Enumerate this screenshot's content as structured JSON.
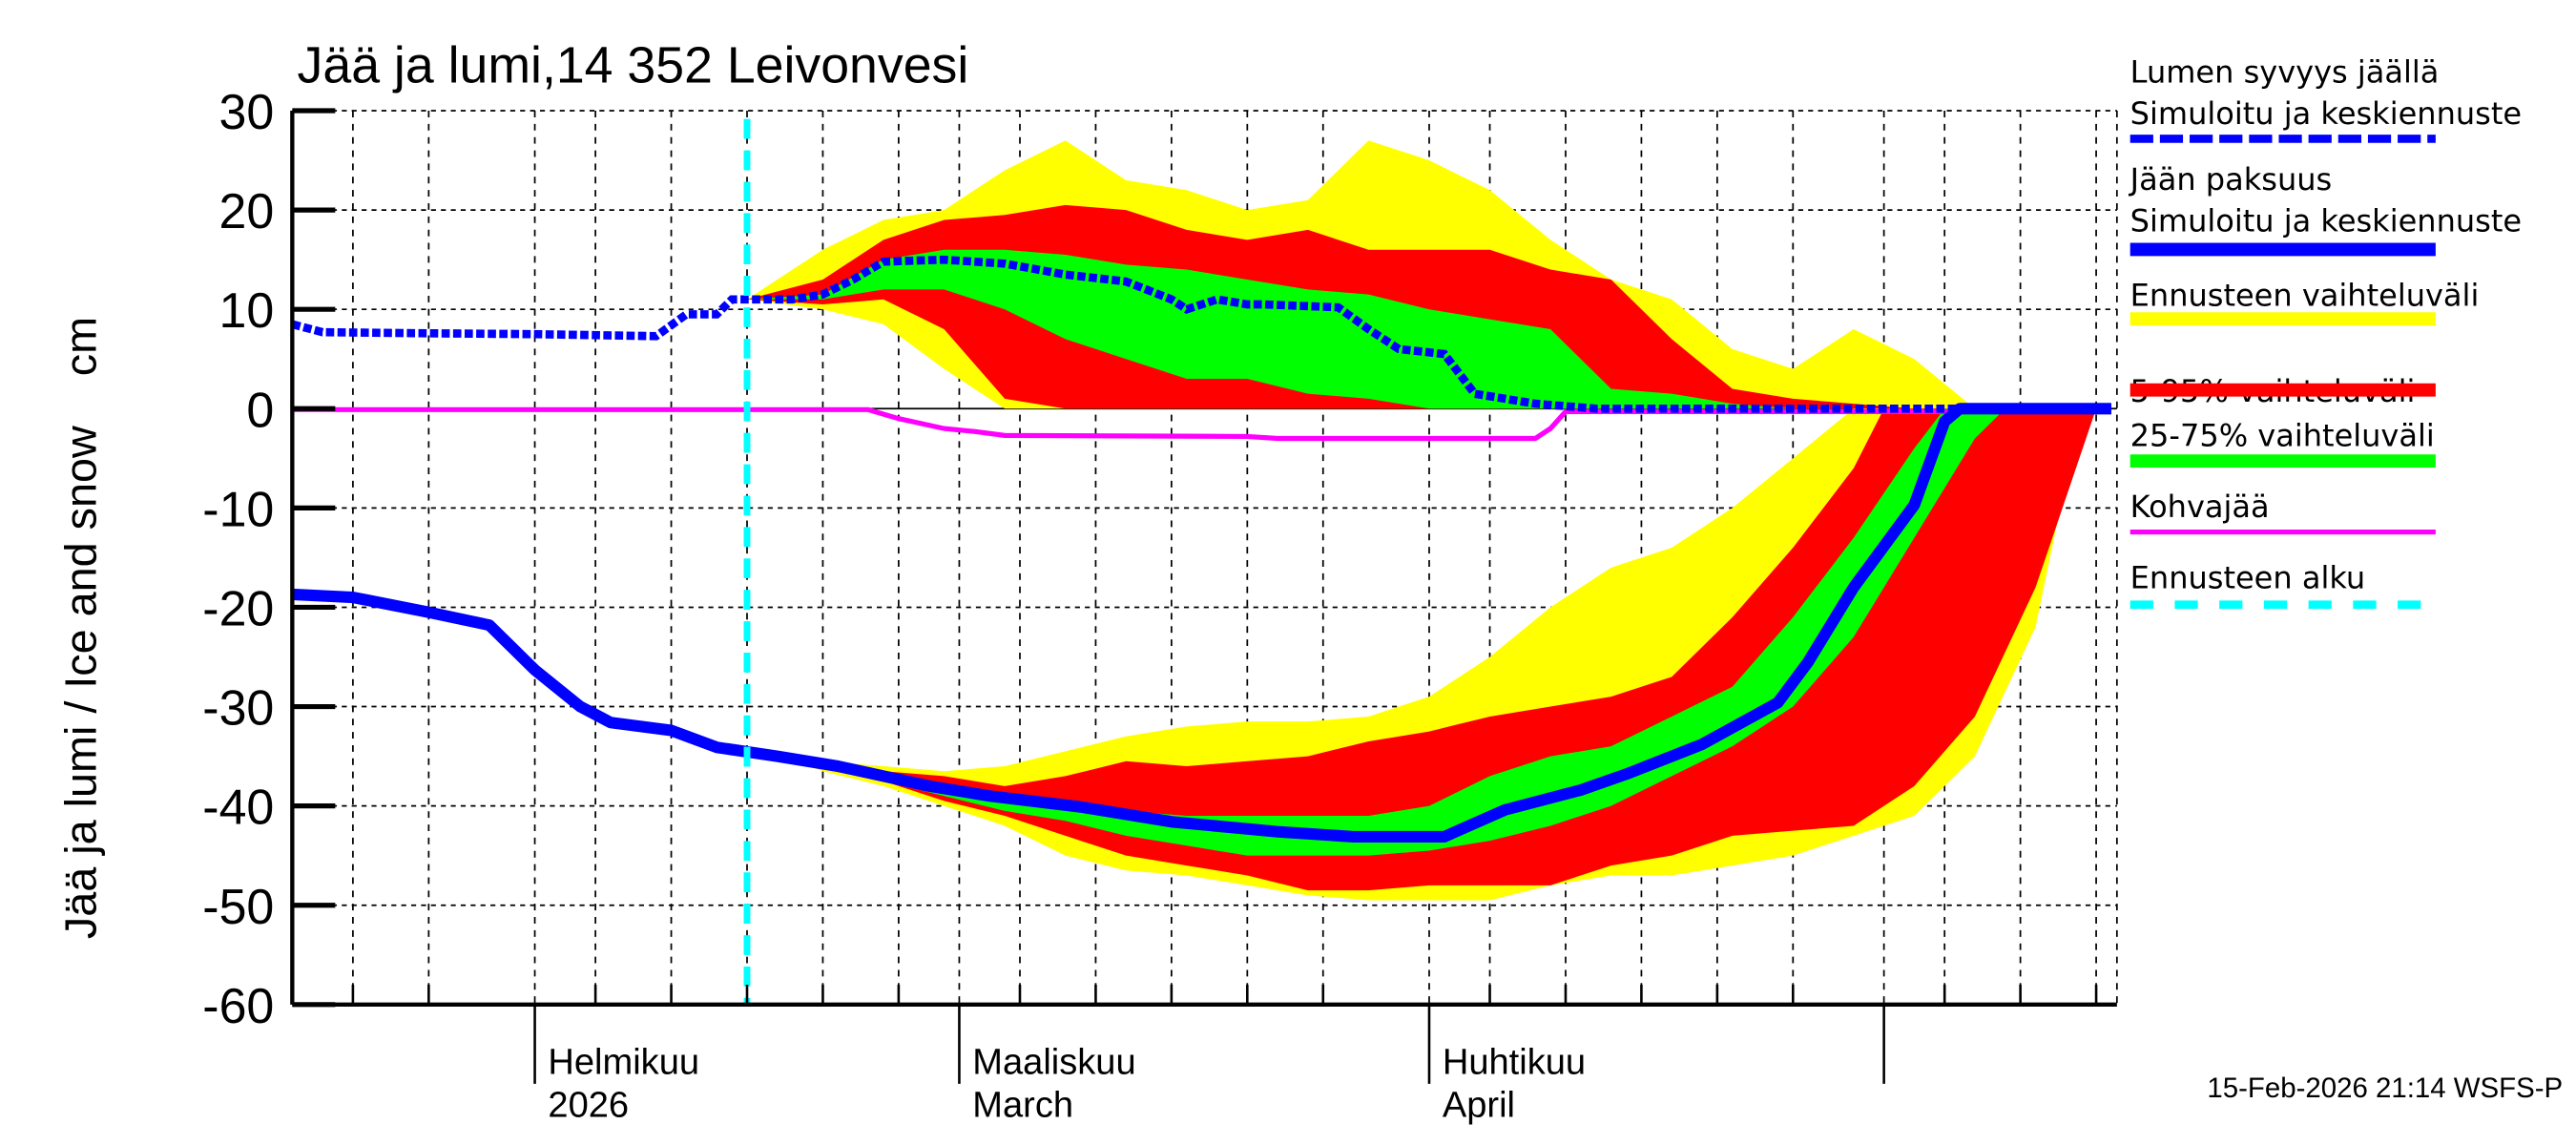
{
  "chart_data": {
    "type": "area",
    "title": "Jää ja lumi,14 352 Leivonvesi",
    "ylabel": "Jää ja lumi / Ice and snow    cm",
    "ylim": [
      -60,
      30
    ],
    "xlim": [
      "2026-01-16",
      "2026-05-16"
    ],
    "grid": true,
    "legend_position": "right",
    "yticks": [
      "30",
      "20",
      "10",
      "0",
      "-10",
      "-20",
      "-30",
      "-40",
      "-50",
      "-60"
    ],
    "xlabels": [
      {
        "date": "2026-02-01",
        "line1": "Helmikuu",
        "line2": "2026"
      },
      {
        "date": "2026-03-01",
        "line1": "Maaliskuu",
        "line2": "March"
      },
      {
        "date": "2026-04-01",
        "line1": "Huhtikuu",
        "line2": "April"
      }
    ],
    "forecast_start": "2026-02-15",
    "footer": "15-Feb-2026 21:14 WSFS-P",
    "colors": {
      "snow": "#0000ff",
      "ice": "#0000ff",
      "range": "#ffff00",
      "p5_95": "#ff0000",
      "p25_75": "#00ff00",
      "slush": "#ff00ff",
      "forecast": "#00ffff"
    },
    "legend": [
      {
        "line1": "Lumen syvyys jäällä",
        "line2": "Simuloitu ja keskiennuste",
        "style": "dotted",
        "color": "#0000ff"
      },
      {
        "line1": "Jään paksuus",
        "line2": "Simuloitu ja keskiennuste",
        "style": "solid",
        "color": "#0000ff"
      },
      {
        "line1": "Ennusteen vaihteluväli",
        "style": "band",
        "color": "#ffff00"
      },
      {
        "line1": "5-95% vaihteluväli",
        "style": "band",
        "color": "#ff0000"
      },
      {
        "line1": "25-75% vaihteluväli",
        "style": "band",
        "color": "#00ff00"
      },
      {
        "line1": "Kohvajää",
        "style": "thin",
        "color": "#ff00ff"
      },
      {
        "line1": "Ennusteen alku",
        "style": "dashed",
        "color": "#00ffff"
      }
    ],
    "snow_depth": [
      [
        "01-16",
        8.5
      ],
      [
        "01-18",
        7.7
      ],
      [
        "01-24",
        7.6
      ],
      [
        "02-01",
        7.5
      ],
      [
        "02-09",
        7.3
      ],
      [
        "02-11",
        9.5
      ],
      [
        "02-13",
        9.5
      ],
      [
        "02-14",
        11
      ],
      [
        "02-18",
        11
      ],
      [
        "02-20",
        11.5
      ],
      [
        "02-22",
        13
      ],
      [
        "02-24",
        14.8
      ],
      [
        "02-28",
        15
      ],
      [
        "03-04",
        14.6
      ],
      [
        "03-08",
        13.5
      ],
      [
        "03-12",
        12.8
      ],
      [
        "03-15",
        11
      ],
      [
        "03-16",
        10
      ],
      [
        "03-18",
        11
      ],
      [
        "03-20",
        10.5
      ],
      [
        "03-21",
        10.5
      ],
      [
        "03-26",
        10.2
      ],
      [
        "03-28",
        8
      ],
      [
        "03-30",
        6
      ],
      [
        "04-02",
        5.5
      ],
      [
        "04-04",
        1.5
      ],
      [
        "04-08",
        0.5
      ],
      [
        "04-12",
        0
      ],
      [
        "05-16",
        0
      ]
    ],
    "ice_thickness": [
      [
        "01-16",
        -18.7
      ],
      [
        "01-20",
        -19
      ],
      [
        "01-25",
        -20.5
      ],
      [
        "01-29",
        -21.8
      ],
      [
        "02-01",
        -26.3
      ],
      [
        "02-04",
        -30
      ],
      [
        "02-06",
        -31.6
      ],
      [
        "02-10",
        -32.4
      ],
      [
        "02-13",
        -34.1
      ],
      [
        "02-17",
        -35
      ],
      [
        "02-21",
        -36
      ],
      [
        "02-27",
        -38
      ],
      [
        "03-03",
        -39
      ],
      [
        "03-09",
        -40.1
      ],
      [
        "03-15",
        -41.6
      ],
      [
        "03-22",
        -42.6
      ],
      [
        "03-27",
        -43.1
      ],
      [
        "04-02",
        -43.1
      ],
      [
        "04-06",
        -40.4
      ],
      [
        "04-11",
        -38.4
      ],
      [
        "04-14",
        -36.8
      ],
      [
        "04-19",
        -33.8
      ],
      [
        "04-24",
        -29.6
      ],
      [
        "04-26",
        -25.5
      ],
      [
        "04-29",
        -18
      ],
      [
        "05-03",
        -9.7
      ],
      [
        "05-05",
        -1.3
      ],
      [
        "05-06",
        0
      ],
      [
        "05-16",
        0
      ]
    ],
    "slush_ice": [
      [
        "01-16",
        -0.1
      ],
      [
        "02-23",
        -0.1
      ],
      [
        "02-25",
        -1
      ],
      [
        "02-28",
        -2
      ],
      [
        "03-02",
        -2.3
      ],
      [
        "03-04",
        -2.7
      ],
      [
        "03-20",
        -2.8
      ],
      [
        "03-22",
        -3
      ],
      [
        "04-08",
        -3
      ],
      [
        "04-09",
        -2
      ],
      [
        "04-10",
        -0.3
      ],
      [
        "05-16",
        -0.3
      ]
    ],
    "snow_bands": {
      "range_upper": [
        [
          "02-15",
          11
        ],
        [
          "02-20",
          16
        ],
        [
          "02-24",
          19
        ],
        [
          "02-28",
          20
        ],
        [
          "03-04",
          24
        ],
        [
          "03-08",
          27
        ],
        [
          "03-12",
          23
        ],
        [
          "03-16",
          22
        ],
        [
          "03-20",
          20
        ],
        [
          "03-24",
          21
        ],
        [
          "03-28",
          27
        ],
        [
          "04-01",
          25
        ],
        [
          "04-05",
          22
        ],
        [
          "04-09",
          17
        ],
        [
          "04-13",
          13
        ],
        [
          "04-17",
          11
        ],
        [
          "04-21",
          6
        ],
        [
          "04-25",
          4
        ],
        [
          "04-29",
          8
        ],
        [
          "05-03",
          5
        ],
        [
          "05-07",
          0
        ]
      ],
      "range_lower": [
        [
          "02-15",
          11
        ],
        [
          "02-20",
          10
        ],
        [
          "02-24",
          8.5
        ],
        [
          "02-28",
          4
        ],
        [
          "03-04",
          0
        ],
        [
          "05-07",
          0
        ]
      ],
      "p5_95_upper": [
        [
          "02-15",
          11
        ],
        [
          "02-20",
          13
        ],
        [
          "02-24",
          17
        ],
        [
          "02-28",
          19
        ],
        [
          "03-04",
          19.5
        ],
        [
          "03-08",
          20.5
        ],
        [
          "03-12",
          20
        ],
        [
          "03-16",
          18
        ],
        [
          "03-20",
          17
        ],
        [
          "03-24",
          18
        ],
        [
          "03-28",
          16
        ],
        [
          "04-01",
          16
        ],
        [
          "04-05",
          16
        ],
        [
          "04-09",
          14
        ],
        [
          "04-13",
          13
        ],
        [
          "04-17",
          7
        ],
        [
          "04-21",
          2
        ],
        [
          "04-25",
          1
        ],
        [
          "04-29",
          0.5
        ],
        [
          "05-03",
          0
        ]
      ],
      "p5_95_lower": [
        [
          "02-15",
          11
        ],
        [
          "02-20",
          10.5
        ],
        [
          "02-24",
          11
        ],
        [
          "02-28",
          8
        ],
        [
          "03-04",
          1
        ],
        [
          "03-08",
          0
        ],
        [
          "05-03",
          0
        ]
      ],
      "p25_75_upper": [
        [
          "02-15",
          11
        ],
        [
          "02-20",
          11.5
        ],
        [
          "02-24",
          15
        ],
        [
          "02-28",
          16
        ],
        [
          "03-04",
          16
        ],
        [
          "03-08",
          15.5
        ],
        [
          "03-12",
          14.5
        ],
        [
          "03-16",
          14
        ],
        [
          "03-20",
          13
        ],
        [
          "03-24",
          12
        ],
        [
          "03-28",
          11.5
        ],
        [
          "04-01",
          10
        ],
        [
          "04-05",
          9
        ],
        [
          "04-09",
          8
        ],
        [
          "04-13",
          2
        ],
        [
          "04-17",
          1.5
        ],
        [
          "04-21",
          0.5
        ],
        [
          "04-25",
          0
        ]
      ],
      "p25_75_lower": [
        [
          "02-15",
          11
        ],
        [
          "02-20",
          11
        ],
        [
          "02-24",
          12
        ],
        [
          "02-28",
          12
        ],
        [
          "03-04",
          10
        ],
        [
          "03-08",
          7
        ],
        [
          "03-12",
          5
        ],
        [
          "03-16",
          3
        ],
        [
          "03-20",
          3
        ],
        [
          "03-24",
          1.5
        ],
        [
          "03-28",
          1
        ],
        [
          "04-01",
          0
        ],
        [
          "04-25",
          0
        ]
      ]
    },
    "ice_bands": {
      "range_upper": [
        [
          "02-17",
          -35
        ],
        [
          "02-20",
          -35.5
        ],
        [
          "02-24",
          -36
        ],
        [
          "02-28",
          -36.5
        ],
        [
          "03-04",
          -36
        ],
        [
          "03-08",
          -34.5
        ],
        [
          "03-12",
          -33
        ],
        [
          "03-16",
          -32
        ],
        [
          "03-20",
          -31.5
        ],
        [
          "03-24",
          -31.5
        ],
        [
          "03-28",
          -31
        ],
        [
          "04-01",
          -29
        ],
        [
          "04-05",
          -25
        ],
        [
          "04-09",
          -20
        ],
        [
          "04-13",
          -16
        ],
        [
          "04-17",
          -14
        ],
        [
          "04-21",
          -10
        ],
        [
          "04-25",
          -5
        ],
        [
          "04-29",
          0
        ],
        [
          "05-14",
          0
        ]
      ],
      "range_lower": [
        [
          "02-17",
          -35
        ],
        [
          "02-20",
          -36.5
        ],
        [
          "02-24",
          -38
        ],
        [
          "02-28",
          -40
        ],
        [
          "03-04",
          -42
        ],
        [
          "03-08",
          -45
        ],
        [
          "03-12",
          -46.5
        ],
        [
          "03-16",
          -47
        ],
        [
          "03-20",
          -48
        ],
        [
          "03-24",
          -49
        ],
        [
          "03-28",
          -49.5
        ],
        [
          "04-01",
          -49.5
        ],
        [
          "04-05",
          -49.5
        ],
        [
          "04-09",
          -48
        ],
        [
          "04-13",
          -47
        ],
        [
          "04-17",
          -47
        ],
        [
          "04-21",
          -46
        ],
        [
          "04-25",
          -45
        ],
        [
          "04-29",
          -43
        ],
        [
          "05-03",
          -41
        ],
        [
          "05-07",
          -35
        ],
        [
          "05-11",
          -22
        ],
        [
          "05-14",
          0
        ]
      ],
      "p5_95_upper": [
        [
          "02-17",
          -35
        ],
        [
          "02-20",
          -36
        ],
        [
          "02-24",
          -36.5
        ],
        [
          "02-28",
          -37
        ],
        [
          "03-04",
          -38
        ],
        [
          "03-08",
          -37
        ],
        [
          "03-12",
          -35.5
        ],
        [
          "03-16",
          -36
        ],
        [
          "03-20",
          -35.5
        ],
        [
          "03-24",
          -35
        ],
        [
          "03-28",
          -33.5
        ],
        [
          "04-01",
          -32.5
        ],
        [
          "04-05",
          -31
        ],
        [
          "04-09",
          -30
        ],
        [
          "04-13",
          -29
        ],
        [
          "04-17",
          -27
        ],
        [
          "04-21",
          -21
        ],
        [
          "04-25",
          -14
        ],
        [
          "04-29",
          -6
        ],
        [
          "05-01",
          0
        ],
        [
          "05-15",
          0
        ]
      ],
      "p5_95_lower": [
        [
          "02-17",
          -35
        ],
        [
          "02-20",
          -36.3
        ],
        [
          "02-24",
          -37.5
        ],
        [
          "02-28",
          -39.5
        ],
        [
          "03-04",
          -41
        ],
        [
          "03-08",
          -43
        ],
        [
          "03-12",
          -45
        ],
        [
          "03-16",
          -46
        ],
        [
          "03-20",
          -47
        ],
        [
          "03-24",
          -48.5
        ],
        [
          "03-28",
          -48.5
        ],
        [
          "04-01",
          -48
        ],
        [
          "04-05",
          -48
        ],
        [
          "04-09",
          -48
        ],
        [
          "04-13",
          -46
        ],
        [
          "04-17",
          -45
        ],
        [
          "04-21",
          -43
        ],
        [
          "04-25",
          -42.5
        ],
        [
          "04-29",
          -42
        ],
        [
          "05-03",
          -38
        ],
        [
          "05-07",
          -31
        ],
        [
          "05-11",
          -18
        ],
        [
          "05-15",
          0
        ]
      ],
      "p25_75_upper": [
        [
          "02-17",
          -35
        ],
        [
          "02-20",
          -36
        ],
        [
          "02-24",
          -37
        ],
        [
          "02-28",
          -38
        ],
        [
          "03-04",
          -39
        ],
        [
          "03-08",
          -39.5
        ],
        [
          "03-12",
          -40.5
        ],
        [
          "03-16",
          -41
        ],
        [
          "03-20",
          -41
        ],
        [
          "03-24",
          -41
        ],
        [
          "03-28",
          -41
        ],
        [
          "04-01",
          -40
        ],
        [
          "04-05",
          -37
        ],
        [
          "04-09",
          -35
        ],
        [
          "04-13",
          -34
        ],
        [
          "04-17",
          -31
        ],
        [
          "04-21",
          -28
        ],
        [
          "04-25",
          -21
        ],
        [
          "04-29",
          -13
        ],
        [
          "05-03",
          -4
        ],
        [
          "05-05",
          0
        ],
        [
          "05-09",
          0
        ]
      ],
      "p25_75_lower": [
        [
          "02-17",
          -35
        ],
        [
          "02-20",
          -36.2
        ],
        [
          "02-24",
          -37.5
        ],
        [
          "02-28",
          -39
        ],
        [
          "03-04",
          -40.5
        ],
        [
          "03-08",
          -41.5
        ],
        [
          "03-12",
          -43
        ],
        [
          "03-16",
          -44
        ],
        [
          "03-20",
          -45
        ],
        [
          "03-24",
          -45
        ],
        [
          "03-28",
          -45
        ],
        [
          "04-01",
          -44.5
        ],
        [
          "04-05",
          -43.5
        ],
        [
          "04-09",
          -42
        ],
        [
          "04-13",
          -40
        ],
        [
          "04-17",
          -37
        ],
        [
          "04-21",
          -34
        ],
        [
          "04-25",
          -30
        ],
        [
          "04-29",
          -23
        ],
        [
          "05-03",
          -13
        ],
        [
          "05-07",
          -3
        ],
        [
          "05-09",
          0
        ]
      ]
    }
  }
}
